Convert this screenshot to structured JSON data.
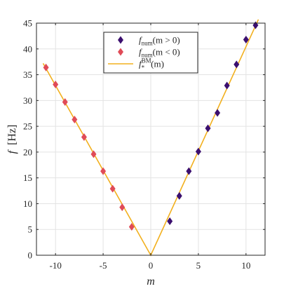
{
  "chart_data": {
    "type": "scatter",
    "xlabel": "m",
    "ylabel": "f",
    "ylabel_unit": "[Hz]",
    "xlim": [
      -12,
      12
    ],
    "ylim": [
      0,
      45
    ],
    "xticks": [
      -10,
      -5,
      0,
      5,
      10
    ],
    "xtick_labels": [
      "-10",
      "-5",
      "0",
      "5",
      "10"
    ],
    "yticks": [
      0,
      5,
      10,
      15,
      20,
      25,
      30,
      35,
      40,
      45
    ],
    "ytick_labels": [
      "0",
      "5",
      "10",
      "15",
      "20",
      "25",
      "30",
      "35",
      "40",
      "45"
    ],
    "grid": true,
    "legend_position": "top-center",
    "series": [
      {
        "name": "f_num(m > 0)",
        "legend_main": "f",
        "legend_sub": "num",
        "legend_arg": "(m > 0)",
        "kind": "scatter",
        "marker": "diamond",
        "color": "#3b0f6f",
        "points": [
          [
            2,
            6.6
          ],
          [
            3,
            11.5
          ],
          [
            4,
            16.3
          ],
          [
            5,
            20.1
          ],
          [
            6,
            24.6
          ],
          [
            7,
            27.6
          ],
          [
            8,
            32.9
          ],
          [
            9,
            37.0
          ],
          [
            10,
            41.8
          ],
          [
            11,
            44.6
          ]
        ]
      },
      {
        "name": "f_num(m < 0)",
        "legend_main": "f",
        "legend_sub": "num",
        "legend_arg": "(m < 0)",
        "kind": "scatter",
        "marker": "diamond",
        "color": "#e04b57",
        "points": [
          [
            -2,
            5.5
          ],
          [
            -3,
            9.3
          ],
          [
            -4,
            12.9
          ],
          [
            -5,
            16.3
          ],
          [
            -6,
            19.6
          ],
          [
            -7,
            22.9
          ],
          [
            -8,
            26.3
          ],
          [
            -9,
            29.7
          ],
          [
            -10,
            33.1
          ],
          [
            -11,
            36.4
          ]
        ]
      },
      {
        "name": "f_*^BM(m)",
        "legend_main": "f",
        "legend_sub": "*",
        "legend_sup": "BM",
        "legend_arg": "(m)",
        "kind": "line",
        "color": "#f2b01e",
        "points": [
          [
            -11.3,
            37.2
          ],
          [
            0,
            0
          ],
          [
            11.3,
            45.7
          ]
        ]
      }
    ]
  }
}
